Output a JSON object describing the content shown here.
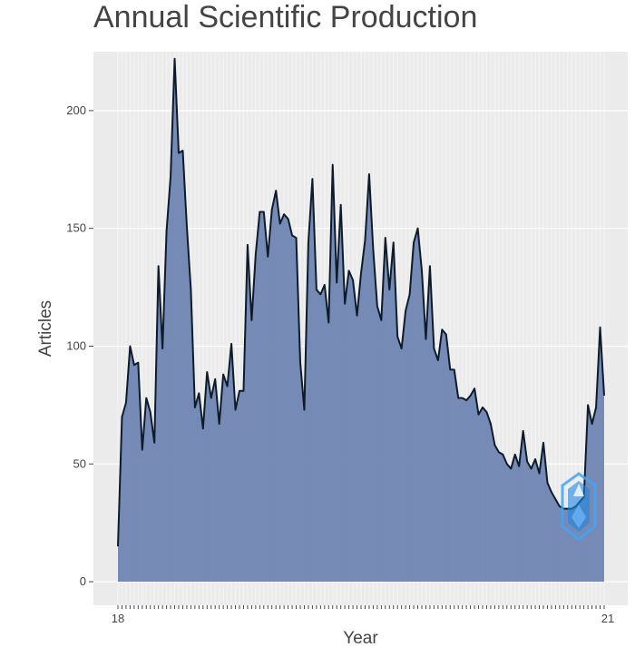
{
  "chart_data": {
    "type": "area",
    "title": "Annual Scientific Production",
    "xlabel": "Year",
    "ylabel": "Articles",
    "x_first_label": "18",
    "x_last_label": "21",
    "ylim": [
      -10,
      225
    ],
    "yticks": [
      0,
      50,
      100,
      150,
      200
    ],
    "grid": true,
    "colors": {
      "fill": "#6a82b0",
      "line": "#0d1b2a",
      "panel": "#ebebeb",
      "grid_major": "#ffffff",
      "logo": "#1e88e5"
    },
    "values": [
      15,
      70,
      76,
      100,
      92,
      93,
      56,
      78,
      72,
      59,
      134,
      99,
      149,
      172,
      222,
      182,
      183,
      151,
      124,
      74,
      80,
      65,
      89,
      78,
      86,
      67,
      88,
      83,
      101,
      73,
      81,
      81,
      143,
      111,
      139,
      157,
      157,
      138,
      158,
      166,
      152,
      156,
      154,
      147,
      146,
      93,
      73,
      144,
      171,
      124,
      122,
      126,
      110,
      177,
      127,
      160,
      118,
      132,
      128,
      113,
      131,
      145,
      173,
      141,
      117,
      111,
      146,
      124,
      144,
      104,
      99,
      115,
      122,
      144,
      150,
      132,
      103,
      134,
      99,
      94,
      107,
      105,
      90,
      90,
      78,
      78,
      77,
      79,
      82,
      71,
      74,
      72,
      67,
      58,
      55,
      54,
      50,
      48,
      54,
      49,
      64,
      51,
      48,
      52,
      46,
      59,
      42,
      38,
      35,
      32,
      31,
      31,
      31,
      32,
      34,
      36,
      75,
      67,
      74,
      108,
      79
    ]
  }
}
